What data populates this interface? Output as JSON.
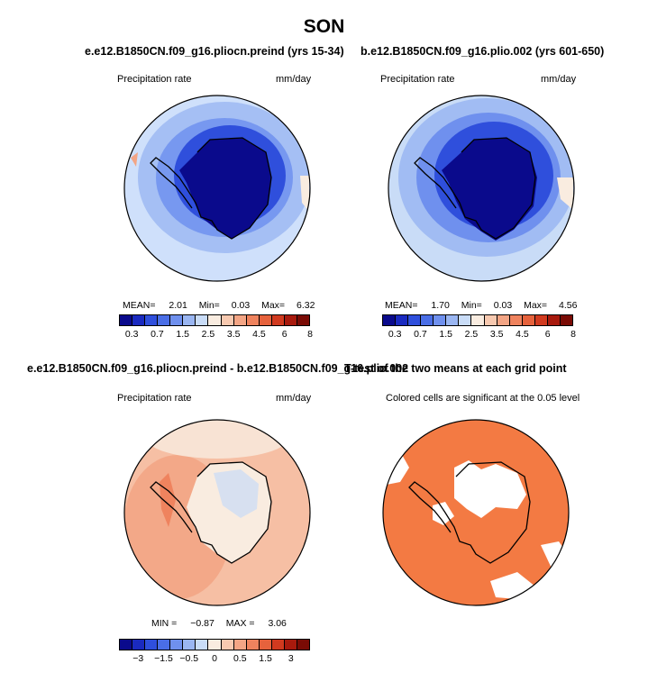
{
  "title": "SON",
  "panels": [
    {
      "id": "p1",
      "title": "e.e12.B1850CN.f09_g16.pliocn.preind (yrs 15-34)",
      "left_label": "Precipitation rate",
      "right_label": "mm/day",
      "stats": {
        "mean": "2.01",
        "min": "0.03",
        "max": "6.32"
      }
    },
    {
      "id": "p2",
      "title": "b.e12.B1850CN.f09_g16.plio.002 (yrs 601-650)",
      "left_label": "Precipitation rate",
      "right_label": "mm/day",
      "stats": {
        "mean": "1.70",
        "min": "0.03",
        "max": "4.56"
      }
    },
    {
      "id": "p3",
      "title": "e.e12.B1850CN.f09_g16.pliocn.preind - b.e12.B1850CN.f09_g16.plio.002",
      "left_label": "Precipitation rate",
      "right_label": "mm/day",
      "stats": {
        "min": "−0.87",
        "max": "3.06"
      }
    },
    {
      "id": "p4",
      "title": "T-test of the two means at each grid point",
      "left_label": "Colored cells are significant at the 0.05 level"
    }
  ],
  "stat_labels": {
    "mean": "MEAN=",
    "min": "Min=",
    "max": "Max=",
    "min_caps": "MIN =",
    "max_caps": "MAX ="
  },
  "colorbars": {
    "absolute": {
      "colors": [
        "#0a0a8c",
        "#1a2ac0",
        "#2f4fdc",
        "#4a6ee6",
        "#6f90ee",
        "#9ab6f2",
        "#c9dcf7",
        "#f9ece0",
        "#f7c9b0",
        "#f3a585",
        "#ef835e",
        "#e6623c",
        "#d13a1f",
        "#a81a0d",
        "#7a0b05"
      ],
      "ticks": [
        "0.3",
        "0.7",
        "1.5",
        "2.5",
        "3.5",
        "4.5",
        "6",
        "8"
      ]
    },
    "difference": {
      "colors": [
        "#0a0a8c",
        "#1a2ac0",
        "#2f4fdc",
        "#4a6ee6",
        "#6f90ee",
        "#9ab6f2",
        "#c9dcf7",
        "#f9ece0",
        "#f7c9b0",
        "#f3a585",
        "#ef835e",
        "#e6623c",
        "#d13a1f",
        "#a81a0d",
        "#7a0b05"
      ],
      "ticks": [
        "−3",
        "−1.5",
        "−0.5",
        "0",
        "0.5",
        "1.5",
        "3"
      ]
    }
  },
  "colors": {
    "ocean_light": "#cfe0fb",
    "ocean_mid": "#9ab6f2",
    "deep_blue": "#1a2ac0",
    "antarctic_core": "#0a0a8c",
    "diff_warm": "#f3b499",
    "diff_strong": "#ef835e",
    "significant": "#f37a43"
  }
}
